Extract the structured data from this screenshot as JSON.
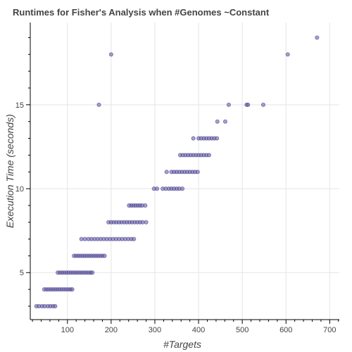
{
  "chart_data": {
    "type": "scatter",
    "title": "Runtimes for Fisher's Analysis when #Genomes ~Constant",
    "xlabel": "#Targets",
    "ylabel": "Execution Time (seconds)",
    "xlim": [
      15,
      722
    ],
    "ylim": [
      2.2,
      19.9
    ],
    "x_ticks": [
      100,
      200,
      300,
      400,
      500,
      600,
      700
    ],
    "y_ticks": [
      5,
      10,
      15
    ],
    "grid": true,
    "colors": {
      "marker": "#5e55a3",
      "grid": "#e5e5e5",
      "axis": "#000000",
      "text": "#444444"
    },
    "points": [
      {
        "x": 29,
        "y": 3
      },
      {
        "x": 35,
        "y": 3
      },
      {
        "x": 42,
        "y": 3
      },
      {
        "x": 48,
        "y": 3
      },
      {
        "x": 55,
        "y": 3
      },
      {
        "x": 61,
        "y": 3
      },
      {
        "x": 67,
        "y": 3
      },
      {
        "x": 72,
        "y": 3
      },
      {
        "x": 47,
        "y": 4
      },
      {
        "x": 52,
        "y": 4
      },
      {
        "x": 57,
        "y": 4
      },
      {
        "x": 62,
        "y": 4
      },
      {
        "x": 67,
        "y": 4
      },
      {
        "x": 72,
        "y": 4
      },
      {
        "x": 77,
        "y": 4
      },
      {
        "x": 82,
        "y": 4
      },
      {
        "x": 87,
        "y": 4
      },
      {
        "x": 92,
        "y": 4
      },
      {
        "x": 97,
        "y": 4
      },
      {
        "x": 102,
        "y": 4
      },
      {
        "x": 107,
        "y": 4
      },
      {
        "x": 111,
        "y": 4
      },
      {
        "x": 78,
        "y": 5
      },
      {
        "x": 83,
        "y": 5
      },
      {
        "x": 88,
        "y": 5
      },
      {
        "x": 93,
        "y": 5
      },
      {
        "x": 98,
        "y": 5
      },
      {
        "x": 103,
        "y": 5
      },
      {
        "x": 108,
        "y": 5
      },
      {
        "x": 113,
        "y": 5
      },
      {
        "x": 118,
        "y": 5
      },
      {
        "x": 123,
        "y": 5
      },
      {
        "x": 128,
        "y": 5
      },
      {
        "x": 133,
        "y": 5
      },
      {
        "x": 138,
        "y": 5
      },
      {
        "x": 143,
        "y": 5
      },
      {
        "x": 148,
        "y": 5
      },
      {
        "x": 153,
        "y": 5
      },
      {
        "x": 157,
        "y": 5
      },
      {
        "x": 115,
        "y": 6
      },
      {
        "x": 120,
        "y": 6
      },
      {
        "x": 125,
        "y": 6
      },
      {
        "x": 130,
        "y": 6
      },
      {
        "x": 135,
        "y": 6
      },
      {
        "x": 140,
        "y": 6
      },
      {
        "x": 145,
        "y": 6
      },
      {
        "x": 150,
        "y": 6
      },
      {
        "x": 155,
        "y": 6
      },
      {
        "x": 160,
        "y": 6
      },
      {
        "x": 165,
        "y": 6
      },
      {
        "x": 170,
        "y": 6
      },
      {
        "x": 175,
        "y": 6
      },
      {
        "x": 180,
        "y": 6
      },
      {
        "x": 185,
        "y": 6
      },
      {
        "x": 132,
        "y": 7
      },
      {
        "x": 140,
        "y": 7
      },
      {
        "x": 148,
        "y": 7
      },
      {
        "x": 155,
        "y": 7
      },
      {
        "x": 162,
        "y": 7
      },
      {
        "x": 169,
        "y": 7
      },
      {
        "x": 176,
        "y": 7
      },
      {
        "x": 183,
        "y": 7
      },
      {
        "x": 190,
        "y": 7
      },
      {
        "x": 197,
        "y": 7
      },
      {
        "x": 204,
        "y": 7
      },
      {
        "x": 211,
        "y": 7
      },
      {
        "x": 218,
        "y": 7
      },
      {
        "x": 225,
        "y": 7
      },
      {
        "x": 232,
        "y": 7
      },
      {
        "x": 239,
        "y": 7
      },
      {
        "x": 246,
        "y": 7
      },
      {
        "x": 252,
        "y": 7
      },
      {
        "x": 194,
        "y": 8
      },
      {
        "x": 200,
        "y": 8
      },
      {
        "x": 206,
        "y": 8
      },
      {
        "x": 212,
        "y": 8
      },
      {
        "x": 218,
        "y": 8
      },
      {
        "x": 224,
        "y": 8
      },
      {
        "x": 230,
        "y": 8
      },
      {
        "x": 236,
        "y": 8
      },
      {
        "x": 242,
        "y": 8
      },
      {
        "x": 248,
        "y": 8
      },
      {
        "x": 254,
        "y": 8
      },
      {
        "x": 260,
        "y": 8
      },
      {
        "x": 266,
        "y": 8
      },
      {
        "x": 272,
        "y": 8
      },
      {
        "x": 280,
        "y": 8
      },
      {
        "x": 241,
        "y": 9
      },
      {
        "x": 246,
        "y": 9
      },
      {
        "x": 251,
        "y": 9
      },
      {
        "x": 256,
        "y": 9
      },
      {
        "x": 261,
        "y": 9
      },
      {
        "x": 266,
        "y": 9
      },
      {
        "x": 271,
        "y": 9
      },
      {
        "x": 278,
        "y": 9
      },
      {
        "x": 298,
        "y": 10
      },
      {
        "x": 305,
        "y": 10
      },
      {
        "x": 318,
        "y": 10
      },
      {
        "x": 325,
        "y": 10
      },
      {
        "x": 332,
        "y": 10
      },
      {
        "x": 338,
        "y": 10
      },
      {
        "x": 344,
        "y": 10
      },
      {
        "x": 350,
        "y": 10
      },
      {
        "x": 356,
        "y": 10
      },
      {
        "x": 363,
        "y": 10
      },
      {
        "x": 327,
        "y": 11
      },
      {
        "x": 338,
        "y": 11
      },
      {
        "x": 344,
        "y": 11
      },
      {
        "x": 350,
        "y": 11
      },
      {
        "x": 356,
        "y": 11
      },
      {
        "x": 362,
        "y": 11
      },
      {
        "x": 368,
        "y": 11
      },
      {
        "x": 374,
        "y": 11
      },
      {
        "x": 380,
        "y": 11
      },
      {
        "x": 386,
        "y": 11
      },
      {
        "x": 392,
        "y": 11
      },
      {
        "x": 398,
        "y": 11
      },
      {
        "x": 358,
        "y": 12
      },
      {
        "x": 364,
        "y": 12
      },
      {
        "x": 370,
        "y": 12
      },
      {
        "x": 376,
        "y": 12
      },
      {
        "x": 382,
        "y": 12
      },
      {
        "x": 388,
        "y": 12
      },
      {
        "x": 394,
        "y": 12
      },
      {
        "x": 400,
        "y": 12
      },
      {
        "x": 406,
        "y": 12
      },
      {
        "x": 412,
        "y": 12
      },
      {
        "x": 418,
        "y": 12
      },
      {
        "x": 424,
        "y": 12
      },
      {
        "x": 388,
        "y": 13
      },
      {
        "x": 400,
        "y": 13
      },
      {
        "x": 406,
        "y": 13
      },
      {
        "x": 412,
        "y": 13
      },
      {
        "x": 418,
        "y": 13
      },
      {
        "x": 424,
        "y": 13
      },
      {
        "x": 430,
        "y": 13
      },
      {
        "x": 436,
        "y": 13
      },
      {
        "x": 442,
        "y": 13
      },
      {
        "x": 443,
        "y": 14
      },
      {
        "x": 461,
        "y": 14
      },
      {
        "x": 172,
        "y": 15
      },
      {
        "x": 469,
        "y": 15
      },
      {
        "x": 510,
        "y": 15
      },
      {
        "x": 513,
        "y": 15
      },
      {
        "x": 548,
        "y": 15
      },
      {
        "x": 200,
        "y": 18
      },
      {
        "x": 604,
        "y": 18
      },
      {
        "x": 671,
        "y": 19
      }
    ]
  }
}
